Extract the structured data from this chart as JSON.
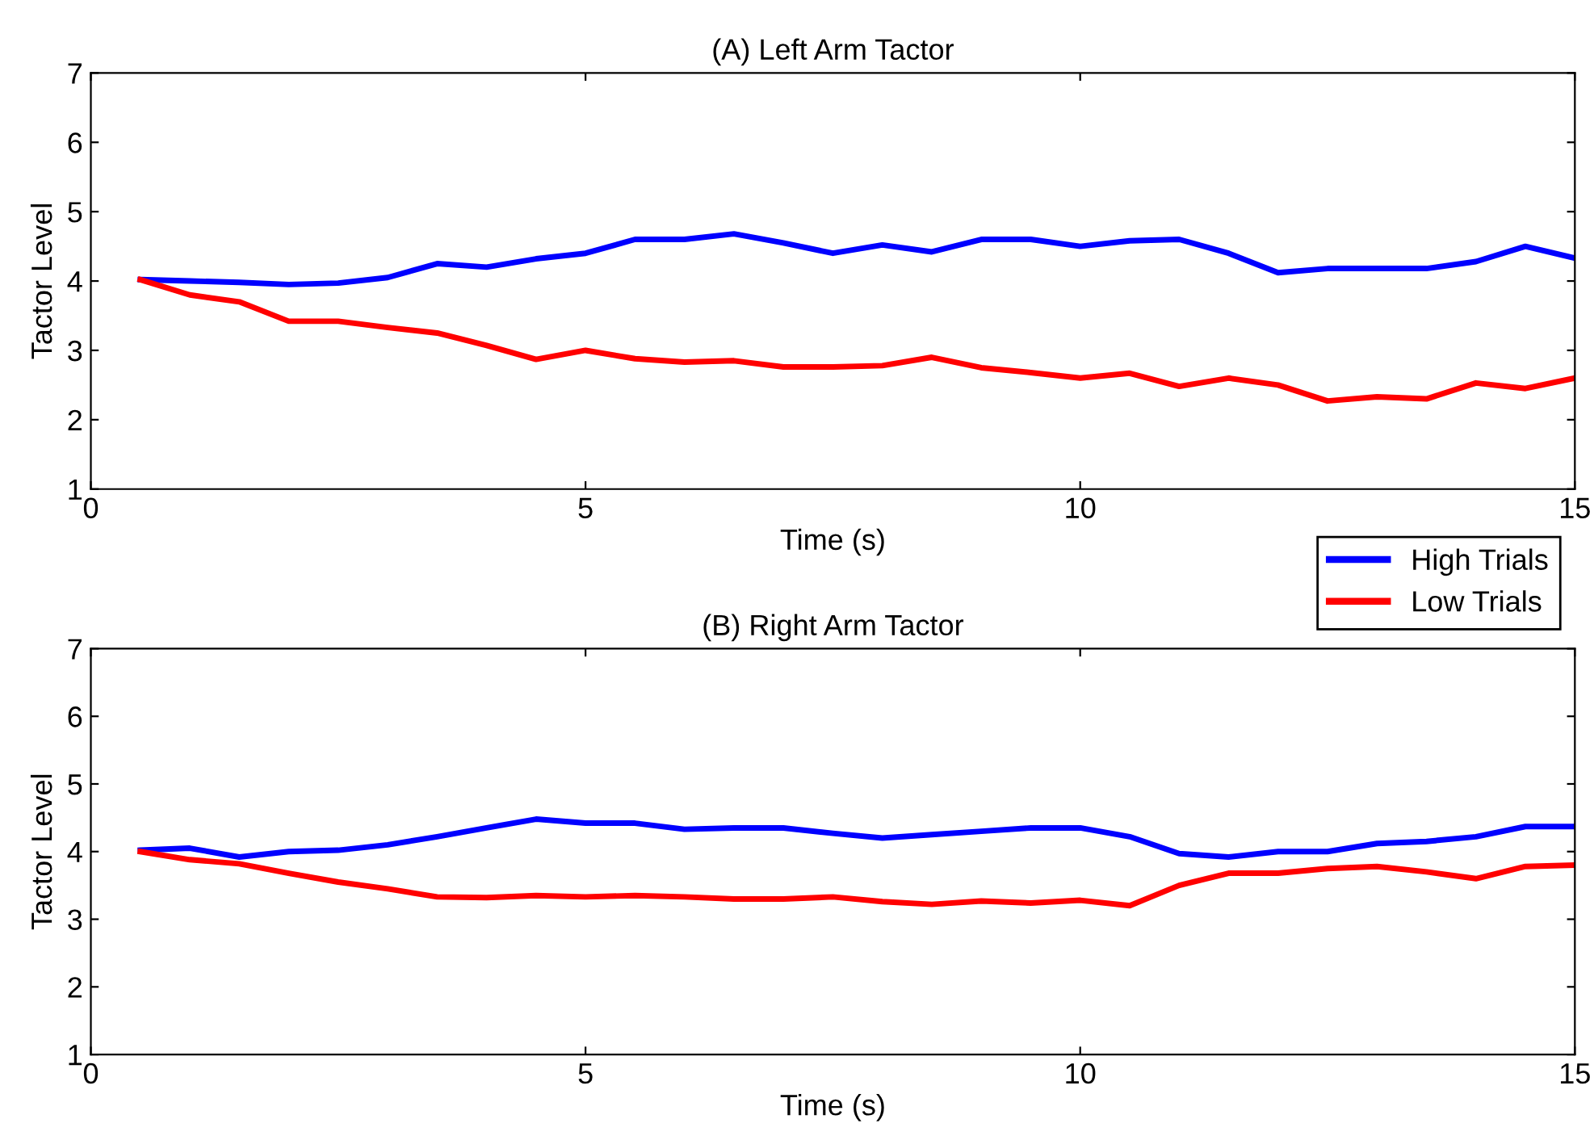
{
  "chart_data": [
    {
      "type": "line",
      "title": "(A) Left Arm Tactor",
      "xlabel": "Time (s)",
      "ylabel": "Tactor Level",
      "xlim": [
        0,
        15
      ],
      "xticks": [
        0,
        5,
        10,
        15
      ],
      "ylim": [
        1,
        7
      ],
      "yticks": [
        1,
        2,
        3,
        4,
        5,
        6,
        7
      ],
      "grid": false,
      "legend": "bottom right",
      "x": [
        0.5,
        1,
        1.5,
        2,
        2.5,
        3,
        3.5,
        4,
        4.5,
        5,
        5.5,
        6,
        6.5,
        7,
        7.5,
        8,
        8.5,
        9,
        9.5,
        10,
        10.5,
        11,
        11.5,
        12,
        12.5,
        13,
        13.5,
        14,
        14.5,
        15
      ],
      "series": [
        {
          "name": "High Trials",
          "color": "#0000ff",
          "values": [
            4.02,
            4.0,
            3.98,
            3.95,
            3.97,
            4.05,
            4.25,
            4.2,
            4.32,
            4.4,
            4.6,
            4.6,
            4.68,
            4.55,
            4.4,
            4.52,
            4.42,
            4.6,
            4.6,
            4.5,
            4.58,
            4.6,
            4.4,
            4.12,
            4.18,
            4.18,
            4.18,
            4.28,
            4.5,
            4.33
          ]
        },
        {
          "name": "Low Trials",
          "color": "#ff0000",
          "values": [
            4.02,
            3.8,
            3.7,
            3.42,
            3.42,
            3.33,
            3.25,
            3.07,
            2.87,
            3.0,
            2.88,
            2.83,
            2.85,
            2.76,
            2.76,
            2.78,
            2.9,
            2.75,
            2.68,
            2.6,
            2.67,
            2.48,
            2.6,
            2.5,
            2.27,
            2.33,
            2.3,
            2.53,
            2.45,
            2.6
          ]
        }
      ]
    },
    {
      "type": "line",
      "title": "(B) Right Arm Tactor",
      "xlabel": "Time (s)",
      "ylabel": "Tactor Level",
      "xlim": [
        0,
        15
      ],
      "xticks": [
        0,
        5,
        10,
        15
      ],
      "ylim": [
        1,
        7
      ],
      "yticks": [
        1,
        2,
        3,
        4,
        5,
        6,
        7
      ],
      "grid": false,
      "x": [
        0.5,
        1,
        1.5,
        2,
        2.5,
        3,
        3.5,
        4,
        4.5,
        5,
        5.5,
        6,
        6.5,
        7,
        7.5,
        8,
        8.5,
        9,
        9.5,
        10,
        10.5,
        11,
        11.5,
        12,
        12.5,
        13,
        13.5,
        14,
        14.5,
        15
      ],
      "series": [
        {
          "color": "#0000ff",
          "values": [
            4.02,
            4.05,
            3.92,
            4.0,
            4.02,
            4.1,
            4.22,
            4.35,
            4.48,
            4.42,
            4.42,
            4.33,
            4.35,
            4.35,
            4.27,
            4.2,
            4.25,
            4.3,
            4.35,
            4.35,
            4.22,
            3.97,
            3.92,
            4.0,
            4.0,
            4.12,
            4.15,
            4.22,
            4.37,
            4.37
          ]
        },
        {
          "color": "#ff0000",
          "values": [
            4.0,
            3.88,
            3.82,
            3.68,
            3.55,
            3.45,
            3.33,
            3.32,
            3.35,
            3.33,
            3.35,
            3.33,
            3.3,
            3.3,
            3.33,
            3.26,
            3.22,
            3.27,
            3.24,
            3.28,
            3.2,
            3.5,
            3.68,
            3.68,
            3.75,
            3.78,
            3.7,
            3.6,
            3.78,
            3.8
          ]
        }
      ]
    }
  ]
}
